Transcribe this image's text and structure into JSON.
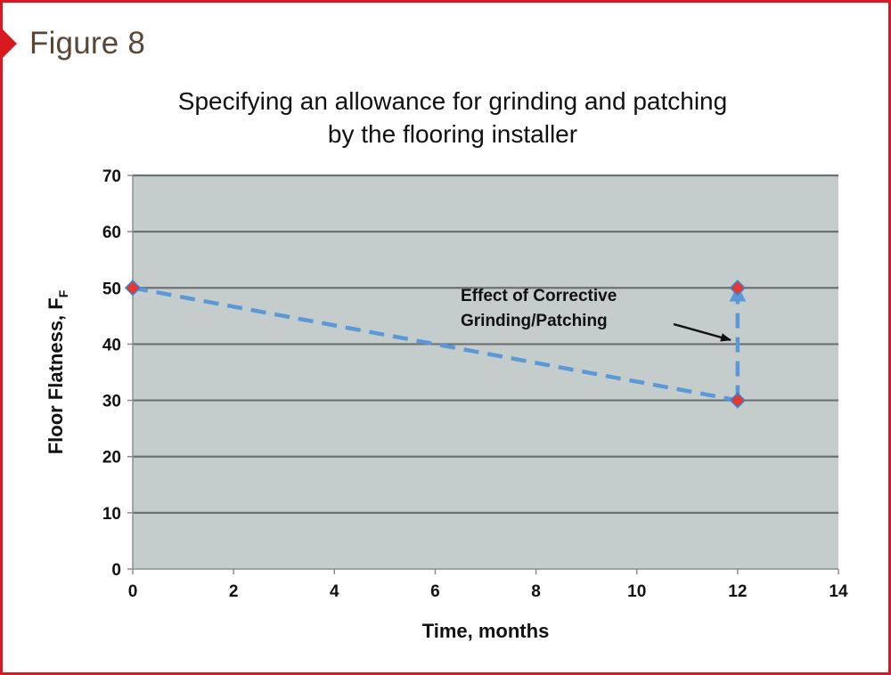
{
  "figure_label": "Figure 8",
  "colors": {
    "border": "#d71920",
    "plot_background": "#c4cdcc",
    "gridline": "#6e7172",
    "series_line": "#5a98d8",
    "marker_fill": "#e8372c",
    "marker_stroke": "#3f7fd0"
  },
  "chart_data": {
    "type": "line",
    "title": "Specifying an allowance for grinding and patching by the flooring installer",
    "title_lines": [
      "Specifying an allowance for grinding and patching",
      "by the flooring installer"
    ],
    "xlabel": "Time, months",
    "ylabel": "Floor Flatness, F",
    "ylabel_subscript": "F",
    "xlim": [
      0,
      14
    ],
    "ylim": [
      0,
      70
    ],
    "x_ticks": [
      0,
      2,
      4,
      6,
      8,
      10,
      12,
      14
    ],
    "y_ticks": [
      0,
      10,
      20,
      30,
      40,
      50,
      60,
      70
    ],
    "grid": "horizontal",
    "series": [
      {
        "style": "dashed",
        "points": [
          {
            "x": 0,
            "y": 50
          },
          {
            "x": 12,
            "y": 30
          },
          {
            "x": 12,
            "y": 50
          }
        ],
        "end_arrow": true
      }
    ],
    "annotations": [
      {
        "lines": [
          "Effect of Corrective",
          "Grinding/Patching"
        ],
        "points_to": {
          "x": 12,
          "y": 42
        }
      }
    ]
  }
}
